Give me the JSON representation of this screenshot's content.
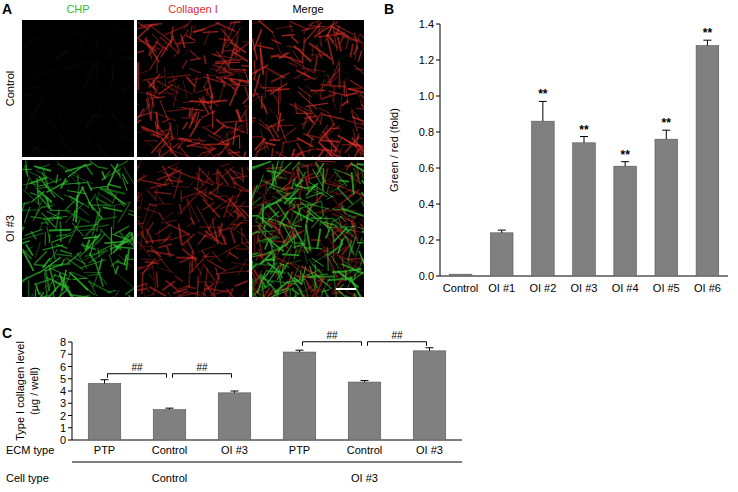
{
  "panels": [
    "A",
    "B",
    "C"
  ],
  "image_panel": {
    "columns": [
      {
        "label": "CHP",
        "color": "#2fbf2f"
      },
      {
        "label": "Collagen I",
        "color": "#e0302a"
      },
      {
        "label": "Merge",
        "color": "#000000"
      }
    ],
    "rows": [
      "Control",
      "OI #3"
    ]
  },
  "chart_data": [
    {
      "type": "bar",
      "y_label": "Green / red (fold)",
      "categories": [
        "Control",
        "OI #1",
        "OI #2",
        "OI #3",
        "OI #4",
        "OI #5",
        "OI #6"
      ],
      "values": [
        0.01,
        0.24,
        0.86,
        0.74,
        0.61,
        0.76,
        1.28
      ],
      "errors": [
        0.0,
        0.015,
        0.11,
        0.035,
        0.025,
        0.05,
        0.03
      ],
      "significance": [
        null,
        null,
        "**",
        "**",
        "**",
        "**",
        "**"
      ],
      "color": "#808080",
      "ylim": [
        0,
        1.4
      ],
      "yticks": [
        {
          "value": 0,
          "label": "0.0"
        },
        {
          "value": 0.2,
          "label": "0.2"
        },
        {
          "value": 0.4,
          "label": "0.4"
        },
        {
          "value": 0.6,
          "label": "0.6"
        },
        {
          "value": 0.8,
          "label": "0.8"
        },
        {
          "value": 1,
          "label": "1.0"
        },
        {
          "value": 1.2,
          "label": "1.2"
        },
        {
          "value": 1.4,
          "label": "1.4"
        }
      ]
    },
    {
      "type": "bar",
      "y_label": [
        "Type I collagen level",
        "(µg / well)"
      ],
      "categories": [
        "PTP",
        "Control",
        "OI #3",
        "PTP",
        "Control",
        "OI #3"
      ],
      "values": [
        4.62,
        2.48,
        3.85,
        7.18,
        4.73,
        7.28
      ],
      "errors": [
        0.3,
        0.12,
        0.15,
        0.15,
        0.12,
        0.25
      ],
      "category_row_label": "ECM type",
      "group_row_label": "Cell type",
      "groups": [
        {
          "label": "Control",
          "start": 0,
          "end": 2
        },
        {
          "label": "OI #3",
          "start": 3,
          "end": 5
        }
      ],
      "comparisons": [
        {
          "from": 0,
          "to": 1,
          "text": "##"
        },
        {
          "from": 1,
          "to": 2,
          "text": "##"
        },
        {
          "from": 3,
          "to": 4,
          "text": "##"
        },
        {
          "from": 4,
          "to": 5,
          "text": "##"
        }
      ],
      "color": "#808080",
      "ylim": [
        0,
        8
      ],
      "yticks": [
        0,
        1,
        2,
        3,
        4,
        5,
        6,
        7,
        8
      ]
    }
  ]
}
